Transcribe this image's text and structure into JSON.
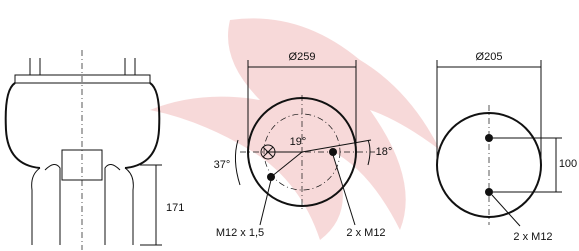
{
  "left_view": {
    "height": "171"
  },
  "top_plate": {
    "diameter": "Ø259",
    "angle_a": "19°",
    "angle_b": "18°",
    "angle_c": "37°",
    "thread_a": "M12 x 1,5",
    "thread_b": "2 x M12"
  },
  "bottom_plate": {
    "diameter": "Ø205",
    "spacing": "100",
    "thread": "2 x M12"
  }
}
